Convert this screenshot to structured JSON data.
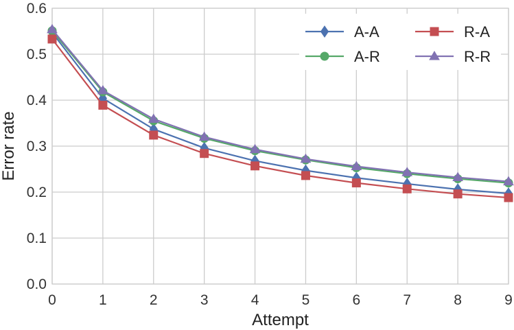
{
  "chart_data": {
    "type": "line",
    "xlabel": "Attempt",
    "ylabel": "Error rate",
    "xlim": [
      0,
      9
    ],
    "ylim": [
      0.0,
      0.6
    ],
    "x": [
      0,
      1,
      2,
      3,
      4,
      5,
      6,
      7,
      8,
      9
    ],
    "xticks": [
      "0",
      "1",
      "2",
      "3",
      "4",
      "5",
      "6",
      "7",
      "8",
      "9"
    ],
    "yticks": [
      {
        "value": 0.0,
        "label": "0.0"
      },
      {
        "value": 0.1,
        "label": "0.1"
      },
      {
        "value": 0.2,
        "label": "0.2"
      },
      {
        "value": 0.3,
        "label": "0.3"
      },
      {
        "value": 0.4,
        "label": "0.4"
      },
      {
        "value": 0.5,
        "label": "0.5"
      },
      {
        "value": 0.6,
        "label": "0.6"
      }
    ],
    "grid": true,
    "legend_position": "top-right",
    "series": [
      {
        "name": "A-A",
        "marker": "diamond",
        "color": "#4c72b0",
        "values": [
          0.547,
          0.404,
          0.337,
          0.296,
          0.268,
          0.247,
          0.231,
          0.218,
          0.206,
          0.197
        ]
      },
      {
        "name": "A-R",
        "marker": "circle",
        "color": "#55a868",
        "values": [
          0.551,
          0.418,
          0.355,
          0.317,
          0.29,
          0.27,
          0.253,
          0.24,
          0.229,
          0.22
        ]
      },
      {
        "name": "R-A",
        "marker": "square",
        "color": "#c44e52",
        "values": [
          0.533,
          0.389,
          0.324,
          0.284,
          0.257,
          0.236,
          0.22,
          0.207,
          0.196,
          0.188
        ]
      },
      {
        "name": "R-R",
        "marker": "triangle",
        "color": "#8172b2",
        "values": [
          0.554,
          0.421,
          0.359,
          0.32,
          0.293,
          0.272,
          0.256,
          0.243,
          0.232,
          0.223
        ]
      }
    ],
    "legend_order": [
      "A-A",
      "R-A",
      "A-R",
      "R-R"
    ]
  }
}
